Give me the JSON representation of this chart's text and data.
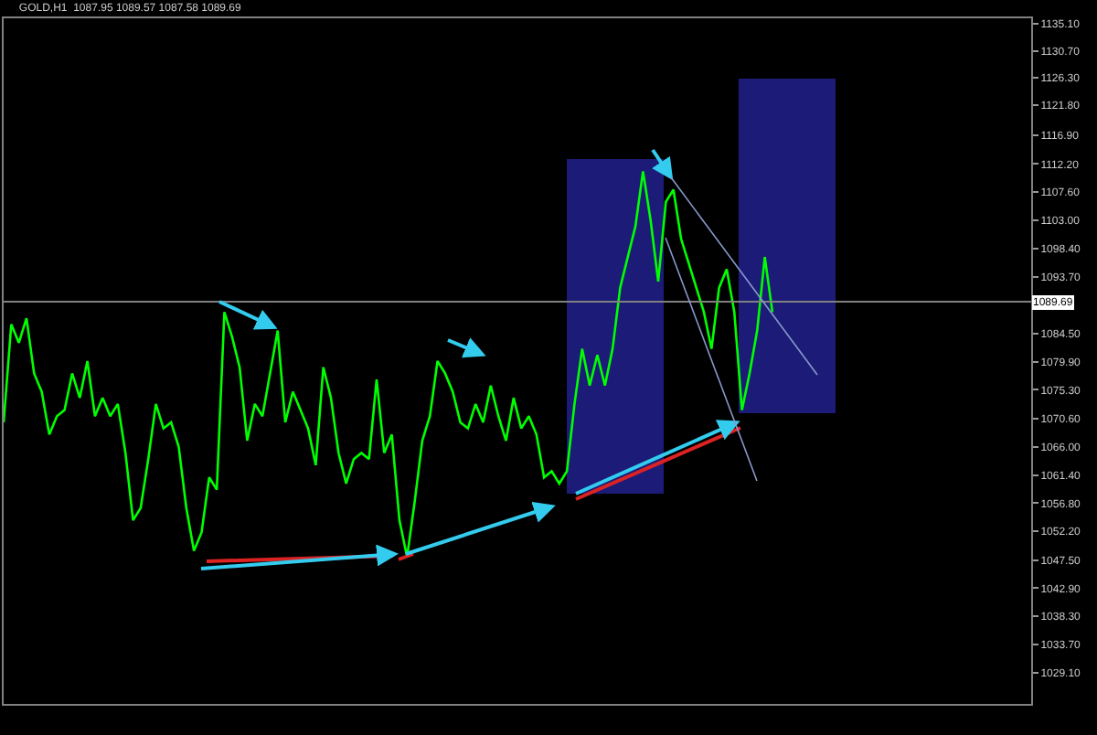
{
  "chart_data": {
    "type": "line",
    "title": "GOLD,H1  1087.95 1089.57 1087.58 1089.69",
    "categories": [
      null,
      null,
      null,
      null,
      null,
      null,
      null,
      null,
      null,
      null,
      null,
      null,
      null,
      null,
      null,
      null,
      null,
      null,
      null,
      null,
      null,
      null,
      null,
      null,
      null,
      null,
      null,
      null,
      null,
      null,
      null,
      null,
      null,
      null,
      null,
      null,
      null,
      null,
      null,
      null,
      null,
      null,
      null,
      null,
      null,
      null,
      null,
      null,
      null,
      null,
      null,
      null,
      null,
      null,
      null,
      null,
      null,
      null,
      null,
      null,
      null,
      null,
      null,
      null,
      null,
      null,
      null,
      null,
      null,
      null,
      null,
      null,
      null,
      null,
      null,
      null,
      null,
      null,
      null,
      null,
      null,
      null,
      null,
      null,
      null,
      null,
      null,
      null,
      null,
      null,
      null,
      null,
      null,
      null,
      null,
      null,
      null,
      null,
      null,
      null,
      null,
      null,
      null,
      null,
      null,
      null,
      null,
      null,
      null,
      null,
      null,
      null,
      null,
      null,
      null,
      null,
      null,
      null,
      null,
      null,
      null,
      null,
      null,
      null,
      null,
      null,
      null,
      null,
      null,
      null,
      null,
      null,
      null,
      null,
      null,
      null
    ],
    "series": [
      {
        "color": "#00ff00",
        "values": [
          1070,
          1086,
          1083,
          1087,
          1078,
          1075,
          1068,
          1071,
          1072,
          1078,
          1074,
          1080,
          1071,
          1074,
          1071,
          1073,
          1065,
          1054,
          1056,
          1064,
          1073,
          1069,
          1070,
          1066,
          1056,
          1049,
          1052,
          1061,
          1059,
          1088,
          1084,
          1079,
          1067,
          1073,
          1071,
          1078,
          1085,
          1070,
          1075,
          1072,
          1069,
          1063,
          1079,
          1074,
          1065,
          1060,
          1064,
          1065,
          1064,
          1077,
          1065,
          1068,
          1054,
          1048,
          1057,
          1067,
          1071,
          1080,
          1078,
          1075,
          1070,
          1069,
          1073,
          1070,
          1076,
          1071,
          1067,
          1074,
          1069,
          1071,
          1068,
          1061,
          1062,
          1060,
          1062,
          1073,
          1082,
          1076,
          1081,
          1076,
          1082,
          1092,
          1097,
          1102,
          1111,
          1103,
          1093,
          1106,
          1108,
          1100,
          1096,
          1092,
          1088,
          1082,
          1092,
          1095,
          1088,
          1072,
          1078,
          1085,
          1097,
          1088,
          null,
          null,
          null,
          null,
          null,
          null,
          null,
          null,
          null,
          null,
          null,
          null,
          null,
          null,
          null,
          null,
          null,
          null,
          null,
          null,
          null,
          null,
          null,
          null,
          null,
          null,
          null,
          null,
          null,
          null,
          null,
          null,
          null,
          null
        ]
      }
    ],
    "ylim": [
      1024,
      1136
    ],
    "yticks": [
      {
        "value": 1135.1,
        "label": "1135.10"
      },
      {
        "value": 1130.7,
        "label": "1130.70"
      },
      {
        "value": 1126.3,
        "label": "1126.30"
      },
      {
        "value": 1121.8,
        "label": "1121.80"
      },
      {
        "value": 1116.9,
        "label": "1116.90"
      },
      {
        "value": 1112.2,
        "label": "1112.20"
      },
      {
        "value": 1107.6,
        "label": "1107.60"
      },
      {
        "value": 1103.0,
        "label": "1103.00"
      },
      {
        "value": 1098.4,
        "label": "1098.40"
      },
      {
        "value": 1093.7,
        "label": "1093.70"
      },
      {
        "value": 1084.5,
        "label": "1084.50"
      },
      {
        "value": 1079.9,
        "label": "1079.90"
      },
      {
        "value": 1075.3,
        "label": "1075.30"
      },
      {
        "value": 1070.6,
        "label": "1070.60"
      },
      {
        "value": 1066.0,
        "label": "1066.00"
      },
      {
        "value": 1061.4,
        "label": "1061.40"
      },
      {
        "value": 1056.8,
        "label": "1056.80"
      },
      {
        "value": 1052.2,
        "label": "1052.20"
      },
      {
        "value": 1047.5,
        "label": "1047.50"
      },
      {
        "value": 1042.9,
        "label": "1042.90"
      },
      {
        "value": 1038.3,
        "label": "1038.30"
      },
      {
        "value": 1033.7,
        "label": "1033.70"
      },
      {
        "value": 1029.1,
        "label": "1029.10"
      }
    ],
    "ref_lines": [
      {
        "axis": "y",
        "value": 1089.69,
        "label": "1089.69",
        "color": "#808080"
      }
    ],
    "tick_labels": "y",
    "grid": false,
    "marker": "none",
    "line_style": "solid"
  }
}
